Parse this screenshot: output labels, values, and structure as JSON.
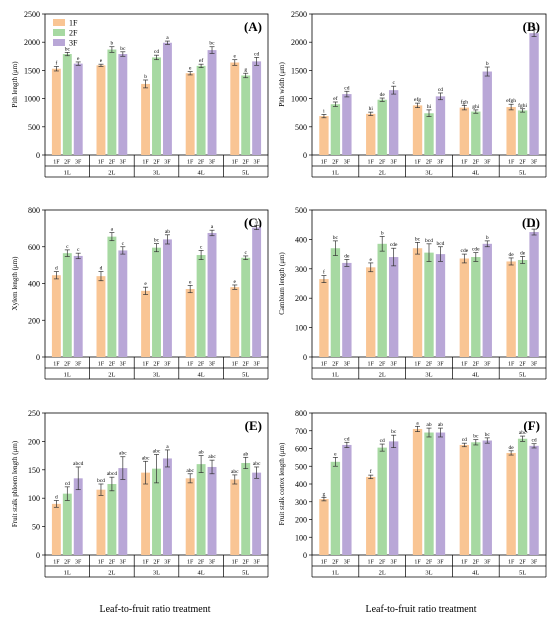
{
  "legend": [
    "1F",
    "2F",
    "3F"
  ],
  "series_colors": [
    "#f9c594",
    "#a7d9a2",
    "#b9a7d7"
  ],
  "x_axis_title": "Leaf-to-fruit ratio treatment",
  "chart_data": [
    {
      "type": "bar",
      "panel_label": "(A)",
      "ylabel": "Pith length (μm)",
      "ylim": [
        0,
        2500
      ],
      "yticks": [
        0,
        500,
        1000,
        1500,
        2000,
        2500
      ],
      "groups": [
        "1L",
        "2L",
        "3L",
        "4L",
        "5L"
      ],
      "treatments": [
        "1F",
        "2F",
        "3F"
      ],
      "series": [
        {
          "name": "1F",
          "values": [
            1530,
            1590,
            1260,
            1450,
            1640
          ],
          "errors": [
            40,
            20,
            70,
            30,
            50
          ],
          "letters": [
            "f",
            "e",
            "b",
            "e",
            "e"
          ]
        },
        {
          "name": "2F",
          "values": [
            1790,
            1870,
            1730,
            1580,
            1410
          ],
          "errors": [
            30,
            50,
            40,
            30,
            40
          ],
          "letters": [
            "bc",
            "b",
            "cd",
            "ef",
            "g"
          ]
        },
        {
          "name": "3F",
          "values": [
            1620,
            1790,
            1990,
            1860,
            1660
          ],
          "errors": [
            30,
            40,
            30,
            60,
            70
          ],
          "letters": [
            "e",
            "bc",
            "a",
            "bc",
            "cd"
          ]
        }
      ],
      "legend_shown": true
    },
    {
      "type": "bar",
      "panel_label": "(B)",
      "ylabel": "Pith width (μm)",
      "ylim": [
        0,
        2500
      ],
      "yticks": [
        0,
        500,
        1000,
        1500,
        2000,
        2500
      ],
      "groups": [
        "1L",
        "2L",
        "3L",
        "4L",
        "5L"
      ],
      "treatments": [
        "1F",
        "2F",
        "3F"
      ],
      "series": [
        {
          "name": "1F",
          "values": [
            690,
            730,
            880,
            840,
            850
          ],
          "errors": [
            30,
            30,
            40,
            40,
            50
          ],
          "letters": [
            "i",
            "hi",
            "efg",
            "fgh",
            "efgh"
          ]
        },
        {
          "name": "2F",
          "values": [
            900,
            980,
            740,
            770,
            790
          ],
          "errors": [
            40,
            30,
            60,
            30,
            30
          ],
          "letters": [
            "ef",
            "de",
            "hi",
            "ghi",
            "fghi"
          ]
        },
        {
          "name": "3F",
          "values": [
            1080,
            1150,
            1040,
            1480,
            2160
          ],
          "errors": [
            50,
            70,
            60,
            80,
            60
          ],
          "letters": [
            "cd",
            "c",
            "cd",
            "b",
            "a"
          ]
        }
      ],
      "legend_shown": false
    },
    {
      "type": "bar",
      "panel_label": "(C)",
      "ylabel": "Xylem length (μm)",
      "ylim": [
        0,
        800
      ],
      "yticks": [
        0,
        200,
        400,
        600,
        800
      ],
      "groups": [
        "1L",
        "2L",
        "3L",
        "4L",
        "5L"
      ],
      "treatments": [
        "1F",
        "2F",
        "3F"
      ],
      "series": [
        {
          "name": "1F",
          "values": [
            445,
            440,
            360,
            370,
            380
          ],
          "errors": [
            20,
            25,
            20,
            20,
            12
          ],
          "letters": [
            "d",
            "d",
            "e",
            "e",
            "e"
          ]
        },
        {
          "name": "2F",
          "values": [
            565,
            655,
            595,
            555,
            540
          ],
          "errors": [
            18,
            22,
            22,
            25,
            10
          ],
          "letters": [
            "c",
            "a",
            "bc",
            "c",
            "c"
          ]
        },
        {
          "name": "3F",
          "values": [
            550,
            580,
            640,
            675,
            705
          ],
          "errors": [
            15,
            20,
            25,
            15,
            12
          ],
          "letters": [
            "c",
            "c",
            "ab",
            "a",
            "a"
          ]
        }
      ],
      "legend_shown": false
    },
    {
      "type": "bar",
      "panel_label": "(D)",
      "ylabel": "Cambium length (μm)",
      "ylim": [
        0,
        500
      ],
      "yticks": [
        0,
        100,
        200,
        300,
        400,
        500
      ],
      "groups": [
        "1L",
        "2L",
        "3L",
        "4L",
        "5L"
      ],
      "treatments": [
        "1F",
        "2F",
        "3F"
      ],
      "series": [
        {
          "name": "1F",
          "values": [
            265,
            305,
            370,
            335,
            325
          ],
          "errors": [
            12,
            15,
            20,
            15,
            12
          ],
          "letters": [
            "f",
            "e",
            "bc",
            "cde",
            "de"
          ]
        },
        {
          "name": "2F",
          "values": [
            370,
            385,
            355,
            340,
            330
          ],
          "errors": [
            25,
            25,
            30,
            15,
            12
          ],
          "letters": [
            "bc",
            "b",
            "bcd",
            "cde",
            "de"
          ]
        },
        {
          "name": "3F",
          "values": [
            320,
            340,
            350,
            385,
            425
          ],
          "errors": [
            12,
            30,
            25,
            10,
            10
          ],
          "letters": [
            "de",
            "cde",
            "bcd",
            "b",
            "a"
          ]
        }
      ],
      "legend_shown": false
    },
    {
      "type": "bar",
      "panel_label": "(E)",
      "ylabel": "Fruit stalk phloem length (μm)",
      "ylim": [
        0,
        250
      ],
      "yticks": [
        0,
        50,
        100,
        150,
        200,
        250
      ],
      "groups": [
        "1L",
        "2L",
        "3L",
        "4L",
        "5L"
      ],
      "treatments": [
        "1F",
        "2F",
        "3F"
      ],
      "series": [
        {
          "name": "1F",
          "values": [
            90,
            115,
            145,
            135,
            133
          ],
          "errors": [
            6,
            10,
            20,
            8,
            8
          ],
          "letters": [
            "d",
            "bcd",
            "abc",
            "abc",
            "abc"
          ]
        },
        {
          "name": "2F",
          "values": [
            108,
            125,
            152,
            160,
            162
          ],
          "errors": [
            12,
            12,
            25,
            15,
            10
          ],
          "letters": [
            "cd",
            "abcd",
            "abc",
            "ab",
            "ab"
          ]
        },
        {
          "name": "3F",
          "values": [
            135,
            153,
            170,
            155,
            145
          ],
          "errors": [
            20,
            20,
            15,
            12,
            10
          ],
          "letters": [
            "abcd",
            "abc",
            "a",
            "abc",
            "abc"
          ]
        }
      ],
      "legend_shown": false
    },
    {
      "type": "bar",
      "panel_label": "(F)",
      "ylabel": "Fruit stalk cortex length (μm)",
      "ylim": [
        0,
        800
      ],
      "yticks": [
        0,
        100,
        200,
        300,
        400,
        500,
        600,
        700,
        800
      ],
      "groups": [
        "1L",
        "2L",
        "3L",
        "4L",
        "5L"
      ],
      "treatments": [
        "1F",
        "2F",
        "3F"
      ],
      "series": [
        {
          "name": "1F",
          "values": [
            315,
            440,
            710,
            620,
            575
          ],
          "errors": [
            10,
            10,
            15,
            10,
            12
          ],
          "letters": [
            "g",
            "f",
            "a",
            "cd",
            "de"
          ]
        },
        {
          "name": "2F",
          "values": [
            525,
            605,
            690,
            635,
            655
          ],
          "errors": [
            25,
            20,
            25,
            15,
            15
          ],
          "letters": [
            "e",
            "cd",
            "ab",
            "bc",
            "abc"
          ]
        },
        {
          "name": "3F",
          "values": [
            620,
            640,
            690,
            645,
            615
          ],
          "errors": [
            15,
            35,
            25,
            15,
            12
          ],
          "letters": [
            "cd",
            "bc",
            "ab",
            "bc",
            "cd"
          ]
        }
      ],
      "legend_shown": false
    }
  ]
}
